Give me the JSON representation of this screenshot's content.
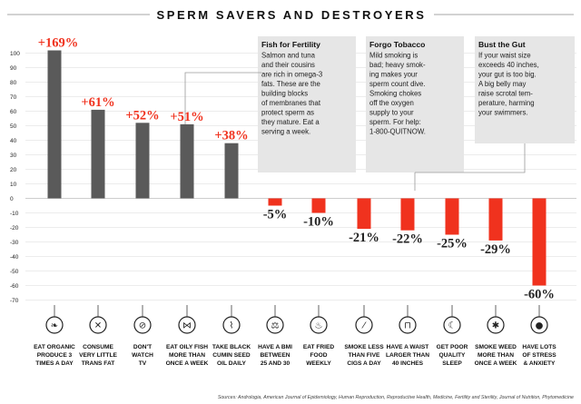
{
  "page": {
    "title": "SPERM SAVERS AND DESTROYERS",
    "source": "Sources: Andrologia, American Journal of Epidemiology, Human Reproduction, Reproductive Health, Medicine, Fertility and Sterility, Journal of Nutrition, Phytomedicine"
  },
  "colors": {
    "positive_bar": "#5a5a5a",
    "negative_bar": "#f0321e",
    "positive_label": "#f0321e",
    "negative_label": "#222222",
    "axis_text": "#222222",
    "gridline": "#e6e6e6",
    "callout_bg": "#e6e6e6"
  },
  "callouts": [
    {
      "title": "Fish for Fertility",
      "lines": [
        "Salmon and tuna",
        "and their cousins",
        "are rich in omega-3",
        "fats. These are the",
        "building blocks",
        "of membranes that",
        "protect sperm as",
        "they mature. Eat a",
        "serving a week."
      ],
      "points_to": 3
    },
    {
      "title": "Forgo Tobacco",
      "lines": [
        "Mild smoking is",
        "bad; heavy smok-",
        "ing makes your",
        "sperm count dive.",
        "Smoking chokes",
        "off the oxygen",
        "supply to your",
        "sperm. For help:",
        "1-800-QUITNOW."
      ],
      "points_to": 7
    },
    {
      "title": "Bust the Gut",
      "lines": [
        "If your waist size",
        "exceeds 40 inches,",
        "your gut is too big.",
        "A big belly may",
        "raise scrotal tem-",
        "perature, harming",
        "your swimmers."
      ],
      "points_to": 8
    }
  ],
  "chart_data": {
    "type": "bar",
    "title": "SPERM SAVERS AND DESTROYERS",
    "xlabel": "",
    "ylabel": "",
    "ylim": [
      -70,
      100
    ],
    "yticks": [
      100,
      90,
      80,
      70,
      60,
      50,
      40,
      30,
      20,
      10,
      0,
      -10,
      -20,
      -30,
      -40,
      -50,
      -60,
      -70
    ],
    "grid": true,
    "categories": [
      "EAT ORGANIC PRODUCE 3 TIMES A DAY",
      "CONSUME VERY LITTLE TRANS FAT",
      "DON'T WATCH TV",
      "EAT OILY FISH MORE THAN ONCE A WEEK",
      "TAKE BLACK CUMIN SEED OIL DAILY",
      "HAVE A BMI BETWEEN 25 AND 30",
      "EAT FRIED FOOD WEEKLY",
      "SMOKE LESS THAN FIVE CIGS A DAY",
      "HAVE A WAIST LARGER THAN 40 INCHES",
      "GET POOR QUALITY SLEEP",
      "SMOKE WEED MORE THAN ONCE A WEEK",
      "HAVE LOTS OF STRESS & ANXIETY"
    ],
    "category_lines": [
      [
        "EAT ORGANIC",
        "PRODUCE 3",
        "TIMES A DAY"
      ],
      [
        "CONSUME",
        "VERY LITTLE",
        "TRANS FAT"
      ],
      [
        "DON'T",
        "WATCH",
        "TV"
      ],
      [
        "EAT OILY FISH",
        "MORE THAN",
        "ONCE A WEEK"
      ],
      [
        "TAKE BLACK",
        "CUMIN SEED",
        "OIL DAILY"
      ],
      [
        "HAVE A BMI",
        "BETWEEN",
        "25 AND 30"
      ],
      [
        "EAT FRIED",
        "FOOD",
        "WEEKLY"
      ],
      [
        "SMOKE LESS",
        "THAN FIVE",
        "CIGS A DAY"
      ],
      [
        "HAVE A WAIST",
        "LARGER THAN",
        "40 INCHES"
      ],
      [
        "GET POOR",
        "QUALITY",
        "SLEEP"
      ],
      [
        "SMOKE WEED",
        "MORE THAN",
        "ONCE A WEEK"
      ],
      [
        "HAVE LOTS",
        "OF STRESS",
        "& ANXIETY"
      ]
    ],
    "values": [
      169,
      61,
      52,
      51,
      38,
      -5,
      -10,
      -21,
      -22,
      -25,
      -29,
      -60
    ],
    "data_labels": [
      "+169%",
      "+61%",
      "+52%",
      "+51%",
      "+38%",
      "-5%",
      "-10%",
      "-21%",
      "-22%",
      "-25%",
      "-29%",
      "-60%"
    ],
    "icons": [
      "leaf-icon",
      "trans-fat-icon",
      "no-tv-icon",
      "fish-icon",
      "dropper-icon",
      "scale-icon",
      "fried-food-icon",
      "cigarette-icon",
      "waist-icon",
      "sleep-icon",
      "weed-leaf-icon",
      "bomb-icon"
    ]
  }
}
